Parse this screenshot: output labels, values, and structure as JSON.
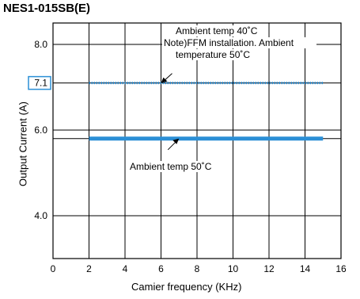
{
  "title": "NES1-015SB(E)",
  "chart_data": {
    "type": "line",
    "title": "NES1-015SB(E)",
    "xlabel": "Camier frequency (KHz)",
    "ylabel": "Output Current (A)",
    "xlim": [
      0,
      16
    ],
    "ylim": [
      3.0,
      8.5
    ],
    "x_ticks": [
      "0",
      "2",
      "4",
      "6",
      "8",
      "10",
      "12",
      "14",
      "16"
    ],
    "y_ticks": [
      {
        "value": 8.0,
        "label": "8.0"
      },
      {
        "value": 7.1,
        "label": "7.1",
        "highlight": true
      },
      {
        "value": 6.0,
        "label": "6.0"
      },
      {
        "value": 4.0,
        "label": "4.0"
      }
    ],
    "grid": true,
    "series": [
      {
        "name": "Ambient temp 40˚C / Note)FFM installation. Ambient temperature 50˚C",
        "x": [
          2,
          15
        ],
        "y": [
          7.1,
          7.1
        ],
        "color": "#2b8fd6",
        "style": "dotted"
      },
      {
        "name": "Ambient temp 50˚C",
        "x": [
          2,
          15
        ],
        "y": [
          5.8,
          5.8
        ],
        "color": "#2b8fd6",
        "style": "solid"
      }
    ],
    "annotations": [
      {
        "lines": [
          "Ambient temp 40˚C",
          "Note)FFM installation. Ambient",
          "temperature 50˚C"
        ],
        "target_x": 6,
        "target_y": 7.1
      },
      {
        "lines": [
          "Ambient temp 50˚C"
        ],
        "target_x": 7,
        "target_y": 5.8
      }
    ]
  }
}
